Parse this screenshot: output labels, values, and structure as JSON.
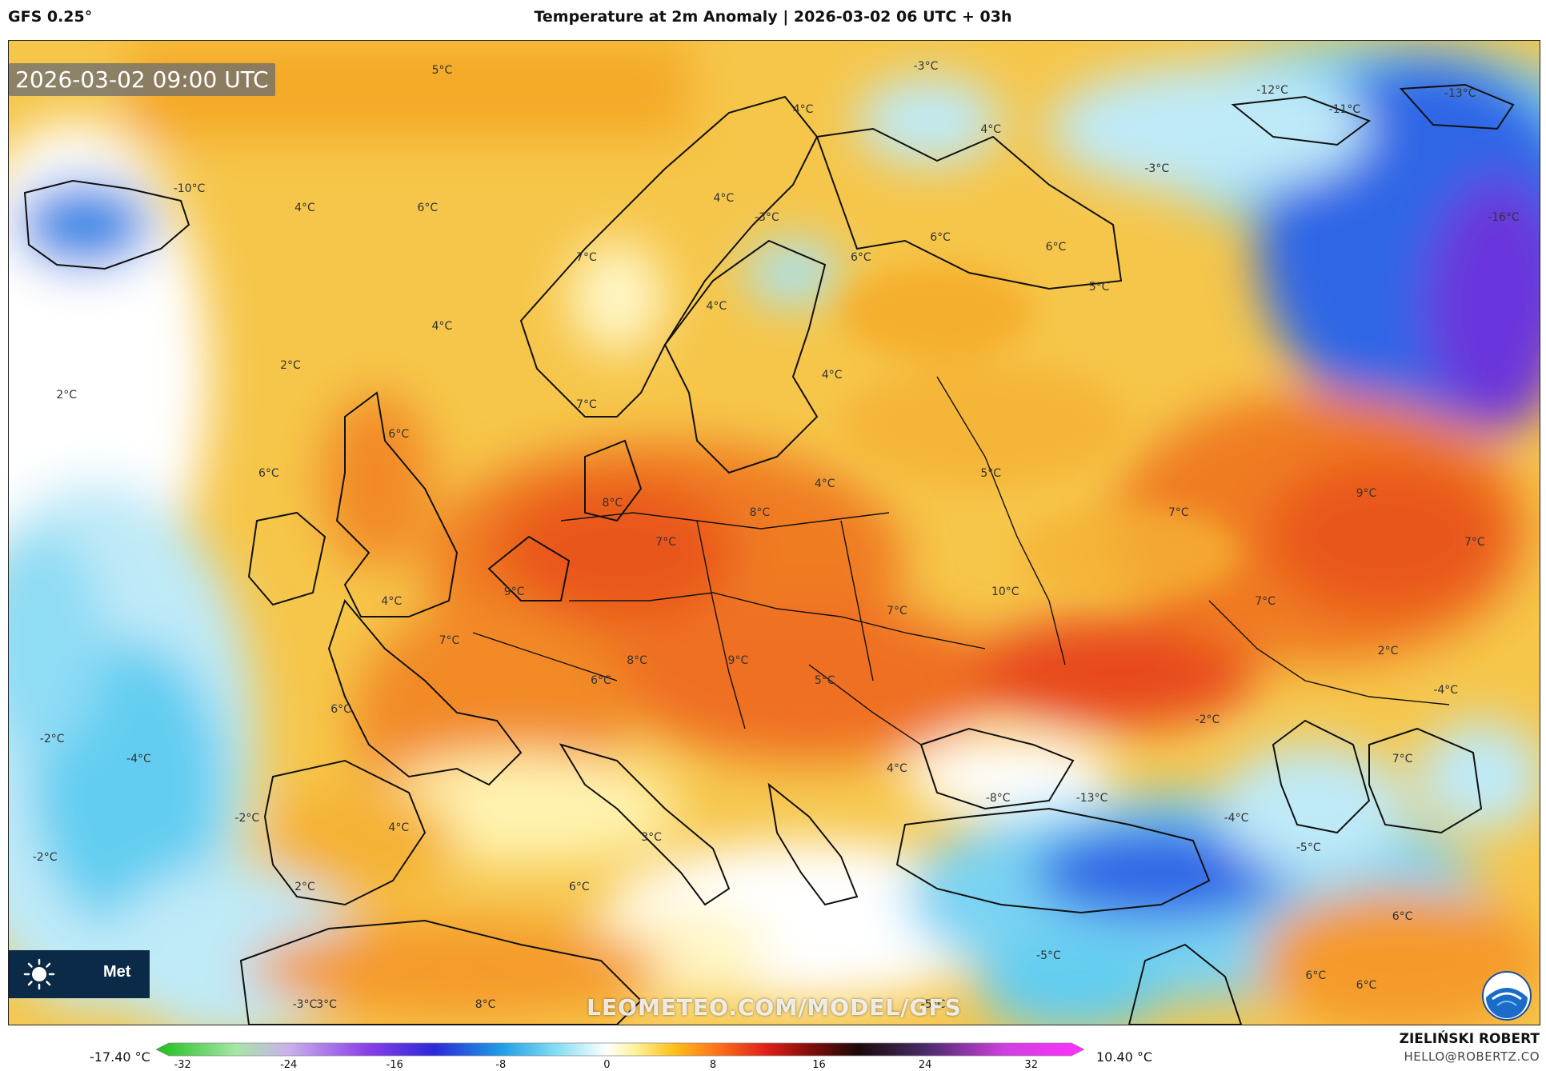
{
  "header": {
    "model": "GFS 0.25°",
    "title": "Temperature at 2m Anomaly | 2026-03-02 06 UTC + 03h"
  },
  "map": {
    "timestamp": "2026-03-02 09:00 UTC",
    "watermark": "LEOMETEO.COM/MODEL/GFS",
    "meteo_logo_text": "Met",
    "labels": [
      {
        "text": "5°C",
        "lat": 70.5,
        "lon": -2.0
      },
      {
        "text": "-3°C",
        "lat": 70.7,
        "lon": 31.5
      },
      {
        "text": "-12°C",
        "lat": 69.5,
        "lon": 55.5
      },
      {
        "text": "-11°C",
        "lat": 68.5,
        "lon": 60.5
      },
      {
        "text": "-13°C",
        "lat": 69.3,
        "lon": 68.5
      },
      {
        "text": "4°C",
        "lat": 68.5,
        "lon": 23.0
      },
      {
        "text": "4°C",
        "lat": 67.5,
        "lon": 36.0
      },
      {
        "text": "-3°C",
        "lat": 65.5,
        "lon": 47.5
      },
      {
        "text": "-10°C",
        "lat": 64.5,
        "lon": -19.5
      },
      {
        "text": "4°C",
        "lat": 63.5,
        "lon": -11.5
      },
      {
        "text": "6°C",
        "lat": 63.5,
        "lon": -3.0
      },
      {
        "text": "4°C",
        "lat": 64.0,
        "lon": 17.5
      },
      {
        "text": "-3°C",
        "lat": 63.0,
        "lon": 20.5
      },
      {
        "text": "6°C",
        "lat": 62.0,
        "lon": 32.5
      },
      {
        "text": "6°C",
        "lat": 61.5,
        "lon": 40.5
      },
      {
        "text": "-16°C",
        "lat": 63.0,
        "lon": 71.5
      },
      {
        "text": "6°C",
        "lat": 61.0,
        "lon": 27.0
      },
      {
        "text": "7°C",
        "lat": 61.0,
        "lon": 8.0
      },
      {
        "text": "5°C",
        "lat": 59.5,
        "lon": 43.5
      },
      {
        "text": "4°C",
        "lat": 58.5,
        "lon": 17.0
      },
      {
        "text": "4°C",
        "lat": 57.5,
        "lon": -2.0
      },
      {
        "text": "2°C",
        "lat": 55.5,
        "lon": -12.5
      },
      {
        "text": "4°C",
        "lat": 55.0,
        "lon": 25.0
      },
      {
        "text": "2°C",
        "lat": 54.0,
        "lon": -28.0
      },
      {
        "text": "7°C",
        "lat": 53.5,
        "lon": 8.0
      },
      {
        "text": "6°C",
        "lat": 52.0,
        "lon": -5.0
      },
      {
        "text": "6°C",
        "lat": 50.0,
        "lon": -14.0
      },
      {
        "text": "5°C",
        "lat": 50.0,
        "lon": 36.0
      },
      {
        "text": "4°C",
        "lat": 49.5,
        "lon": 24.5
      },
      {
        "text": "9°C",
        "lat": 49.0,
        "lon": 62.0
      },
      {
        "text": "8°C",
        "lat": 48.5,
        "lon": 9.8
      },
      {
        "text": "8°C",
        "lat": 48.0,
        "lon": 20.0
      },
      {
        "text": "7°C",
        "lat": 48.0,
        "lon": 49.0
      },
      {
        "text": "7°C",
        "lat": 46.5,
        "lon": 13.5
      },
      {
        "text": "7°C",
        "lat": 46.5,
        "lon": 69.5
      },
      {
        "text": "9°C",
        "lat": 44.0,
        "lon": 3.0
      },
      {
        "text": "10°C",
        "lat": 44.0,
        "lon": 37.0
      },
      {
        "text": "4°C",
        "lat": 43.5,
        "lon": -5.5
      },
      {
        "text": "7°C",
        "lat": 43.5,
        "lon": 55.0
      },
      {
        "text": "7°C",
        "lat": 43.0,
        "lon": 29.5
      },
      {
        "text": "7°C",
        "lat": 41.5,
        "lon": -1.5
      },
      {
        "text": "8°C",
        "lat": 40.5,
        "lon": 11.5
      },
      {
        "text": "9°C",
        "lat": 40.5,
        "lon": 18.5
      },
      {
        "text": "2°C",
        "lat": 41.0,
        "lon": 63.5
      },
      {
        "text": "6°C",
        "lat": 39.5,
        "lon": 9.0
      },
      {
        "text": "5°C",
        "lat": 39.5,
        "lon": 24.5
      },
      {
        "text": "-2°C",
        "lat": 37.5,
        "lon": 51.0
      },
      {
        "text": "-4°C",
        "lat": 39.0,
        "lon": 67.5
      },
      {
        "text": "6°C",
        "lat": 38.0,
        "lon": -9.0
      },
      {
        "text": "-2°C",
        "lat": 36.5,
        "lon": -29.0
      },
      {
        "text": "-4°C",
        "lat": 35.5,
        "lon": -23.0
      },
      {
        "text": "7°C",
        "lat": 35.5,
        "lon": 64.5
      },
      {
        "text": "4°C",
        "lat": 35.0,
        "lon": 29.5
      },
      {
        "text": "-8°C",
        "lat": 33.5,
        "lon": 36.5
      },
      {
        "text": "-13°C",
        "lat": 33.5,
        "lon": 43.0
      },
      {
        "text": "-2°C",
        "lat": 32.5,
        "lon": -15.5
      },
      {
        "text": "-4°C",
        "lat": 32.5,
        "lon": 53.0
      },
      {
        "text": "4°C",
        "lat": 32.0,
        "lon": -5.0
      },
      {
        "text": "3°C",
        "lat": 31.5,
        "lon": 12.5
      },
      {
        "text": "-5°C",
        "lat": 31.0,
        "lon": 58.0
      },
      {
        "text": "-2°C",
        "lat": 30.5,
        "lon": -29.5
      },
      {
        "text": "2°C",
        "lat": 29.0,
        "lon": -11.5
      },
      {
        "text": "6°C",
        "lat": 29.0,
        "lon": 7.5
      },
      {
        "text": "6°C",
        "lat": 27.5,
        "lon": 64.5
      },
      {
        "text": "-5°C",
        "lat": 25.5,
        "lon": 40.0
      },
      {
        "text": "6°C",
        "lat": 24.5,
        "lon": 58.5
      },
      {
        "text": "6°C",
        "lat": 24.0,
        "lon": 62.0
      },
      {
        "text": "-3°C",
        "lat": 23.0,
        "lon": -11.5
      },
      {
        "text": "3°C",
        "lat": 23.0,
        "lon": -10.0
      },
      {
        "text": "8°C",
        "lat": 23.0,
        "lon": 1.0
      },
      {
        "text": "-5°C",
        "lat": 23.0,
        "lon": 32.0
      }
    ]
  },
  "colorbar": {
    "min_label": "-17.40 °C",
    "max_label": "10.40 °C",
    "ticks": [
      "-32",
      "-24",
      "-16",
      "-8",
      "0",
      "8",
      "16",
      "24",
      "32"
    ],
    "tick_values": [
      -32,
      -24,
      -16,
      -8,
      0,
      8,
      16,
      24,
      32
    ],
    "range": [
      -34,
      36
    ],
    "stops": [
      {
        "v": -34,
        "c": "#1bbf1b"
      },
      {
        "v": -28,
        "c": "#a6e6a6"
      },
      {
        "v": -24,
        "c": "#cbb0ec"
      },
      {
        "v": -18,
        "c": "#8a3ee8"
      },
      {
        "v": -13,
        "c": "#2a2ad8"
      },
      {
        "v": -8,
        "c": "#1f9de6"
      },
      {
        "v": -4,
        "c": "#7fdcf3"
      },
      {
        "v": 0,
        "c": "#ffffff"
      },
      {
        "v": 2,
        "c": "#fff3a0"
      },
      {
        "v": 5,
        "c": "#ffc21a"
      },
      {
        "v": 8,
        "c": "#ff7a1a"
      },
      {
        "v": 12,
        "c": "#e0201a"
      },
      {
        "v": 15,
        "c": "#8a0f0a"
      },
      {
        "v": 19,
        "c": "#1a0a0a"
      },
      {
        "v": 24,
        "c": "#4a2a6a"
      },
      {
        "v": 30,
        "c": "#d040e0"
      },
      {
        "v": 36,
        "c": "#ff30ff"
      }
    ]
  },
  "author": {
    "name": "ZIELIŃSKI ROBERT",
    "email": "HELLO@ROBERTZ.CO"
  },
  "colors": {
    "warm": "#f6c64a",
    "orange": "#f59a2a",
    "hot": "#e9571c",
    "cold_light": "#bfeaf8",
    "cold": "#4fc3ee",
    "cold_deep": "#2050d8",
    "coast": "#111111"
  }
}
